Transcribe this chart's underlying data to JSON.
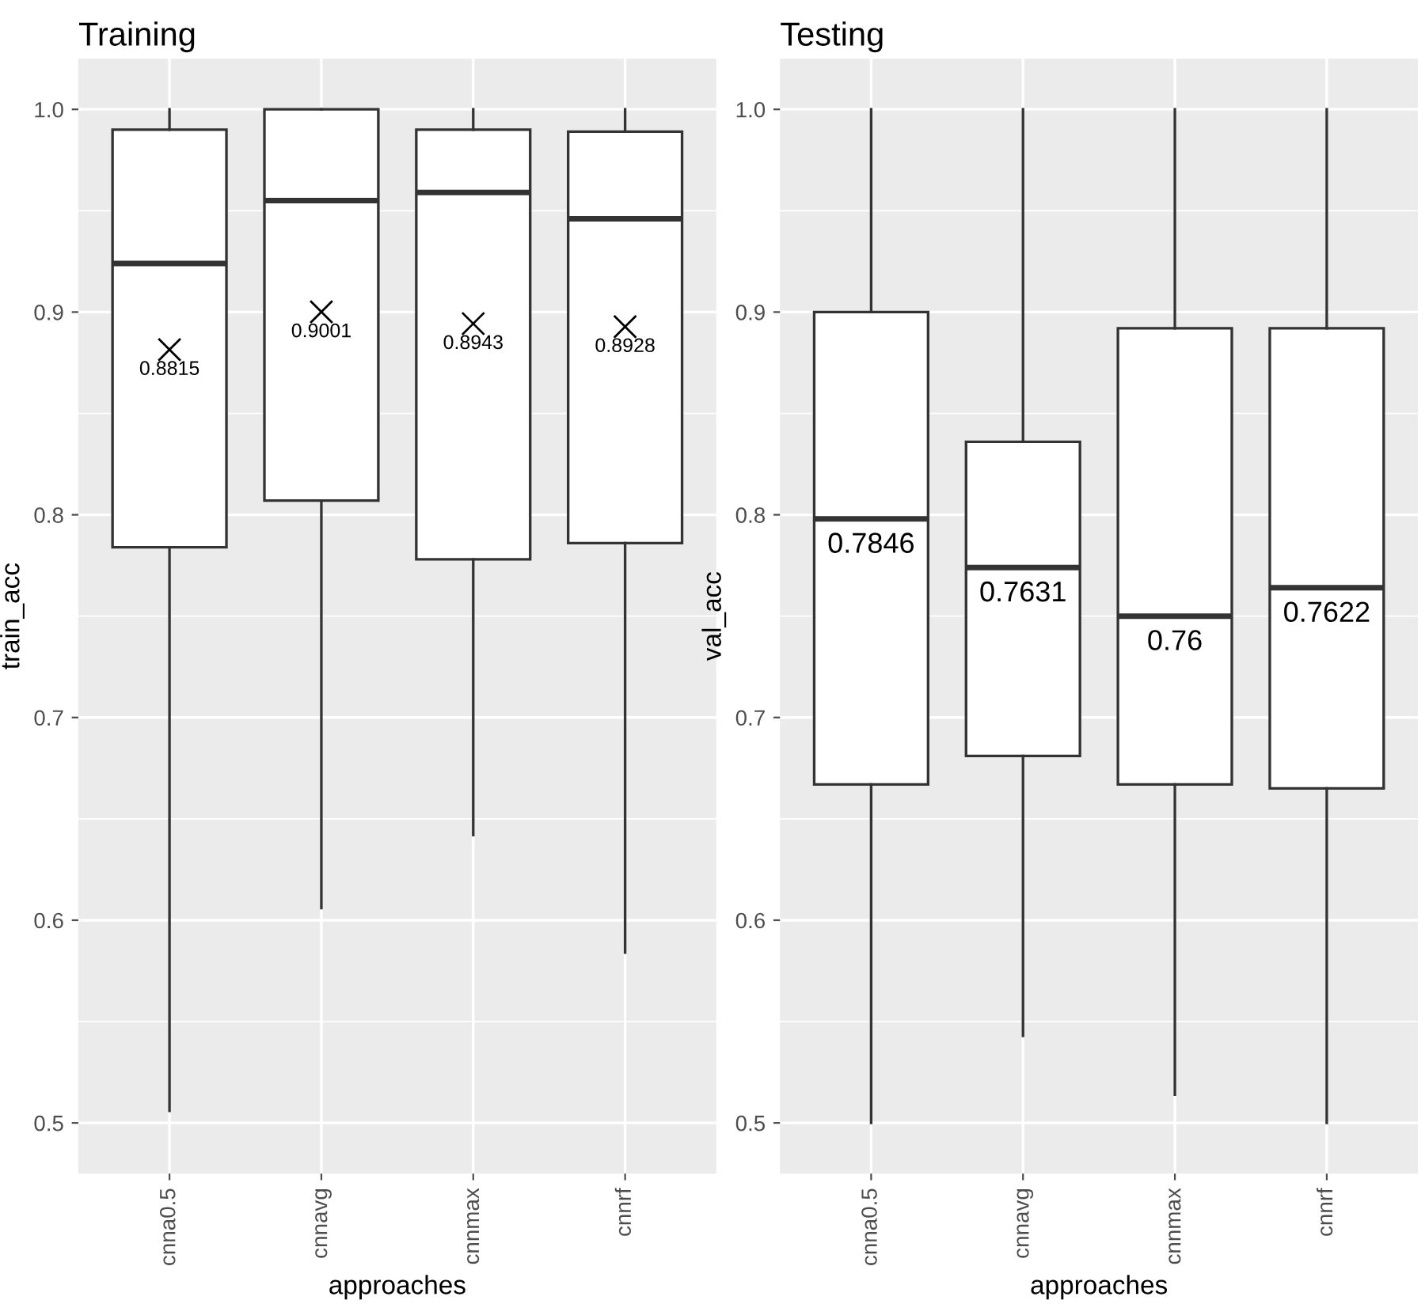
{
  "chart_data": [
    {
      "type": "box",
      "title": "Training",
      "xlabel": "approaches",
      "ylabel": "train_acc",
      "categories": [
        "cnna0.5",
        "cnnavg",
        "cnnmax",
        "cnnrf"
      ],
      "boxes": [
        {
          "low": 0.506,
          "q1": 0.784,
          "median": 0.924,
          "q3": 0.99,
          "high": 1.0,
          "mean": 0.8815
        },
        {
          "low": 0.606,
          "q1": 0.807,
          "median": 0.955,
          "q3": 1.0,
          "high": 1.0,
          "mean": 0.9001
        },
        {
          "low": 0.642,
          "q1": 0.778,
          "median": 0.959,
          "q3": 0.99,
          "high": 1.0,
          "mean": 0.8943
        },
        {
          "low": 0.584,
          "q1": 0.786,
          "median": 0.946,
          "q3": 0.989,
          "high": 1.0,
          "mean": 0.8928
        }
      ],
      "marker": "cross",
      "annotations": [
        "0.8815",
        "0.9001",
        "0.8943",
        "0.8928"
      ],
      "ylim": [
        0.475,
        1.025
      ],
      "yticks": [
        {
          "value": 0.5,
          "label": "0.5"
        },
        {
          "value": 0.6,
          "label": "0.6"
        },
        {
          "value": 0.7,
          "label": "0.7"
        },
        {
          "value": 0.8,
          "label": "0.8"
        },
        {
          "value": 0.9,
          "label": "0.9"
        },
        {
          "value": 1.0,
          "label": "1.0"
        }
      ],
      "grid": true
    },
    {
      "type": "box",
      "title": "Testing",
      "xlabel": "approaches",
      "ylabel": "val_acc",
      "categories": [
        "cnna0.5",
        "cnnavg",
        "cnnmax",
        "cnnrf"
      ],
      "boxes": [
        {
          "low": 0.5,
          "q1": 0.667,
          "median": 0.798,
          "q3": 0.9,
          "high": 1.0
        },
        {
          "low": 0.543,
          "q1": 0.681,
          "median": 0.774,
          "q3": 0.836,
          "high": 1.0
        },
        {
          "low": 0.514,
          "q1": 0.667,
          "median": 0.75,
          "q3": 0.892,
          "high": 1.0
        },
        {
          "low": 0.5,
          "q1": 0.665,
          "median": 0.764,
          "q3": 0.892,
          "high": 1.0
        }
      ],
      "annotations": [
        "0.7846",
        "0.7631",
        "0.76",
        "0.7622"
      ],
      "ylim": [
        0.475,
        1.025
      ],
      "yticks": [
        {
          "value": 0.5,
          "label": "0.5"
        },
        {
          "value": 0.6,
          "label": "0.6"
        },
        {
          "value": 0.7,
          "label": "0.7"
        },
        {
          "value": 0.8,
          "label": "0.8"
        },
        {
          "value": 0.9,
          "label": "0.9"
        },
        {
          "value": 1.0,
          "label": "1.0"
        }
      ],
      "grid": true
    }
  ]
}
